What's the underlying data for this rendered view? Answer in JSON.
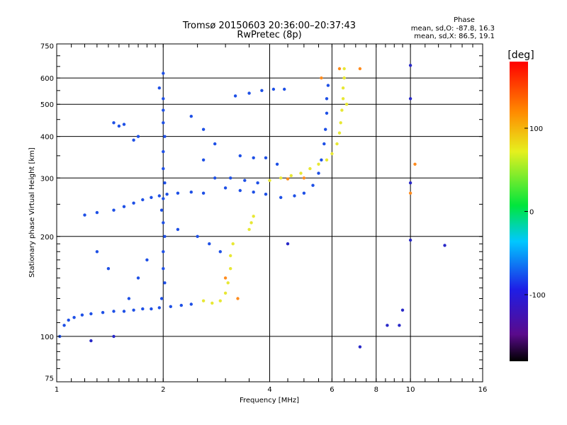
{
  "chart_data": {
    "type": "scatter",
    "title": "Tromsø 20150603 20:36:00–20:37:43",
    "subtitle": "RwPretec (8p)",
    "xlabel": "Frequency [MHz]",
    "ylabel": "Stationary phase Virtual Height [km]",
    "x_scale": "log",
    "y_scale": "log",
    "xlim": [
      1,
      16
    ],
    "ylim": [
      73,
      760
    ],
    "x_ticks": [
      "1",
      "2",
      "4",
      "6",
      "8",
      "10",
      "16"
    ],
    "y_ticks": [
      "75",
      "100",
      "200",
      "300",
      "400",
      "500",
      "600",
      "750"
    ],
    "grid": true,
    "phase_box": {
      "title": "Phase",
      "line1": "mean, sd,O: -87.8, 16.3",
      "line2": "mean, sd,X:  86.5, 19.1"
    },
    "colorbar": {
      "label": "[deg]",
      "range": [
        -180,
        180
      ],
      "ticks": [
        "100",
        "0",
        "-100"
      ],
      "colormap": "rainbow (black-purple-blue-cyan-green-yellow-red)"
    },
    "series": [
      {
        "mode": "O",
        "phase_deg": -90,
        "color": "#1e50e6",
        "points": [
          [
            1.02,
            100
          ],
          [
            1.05,
            108
          ],
          [
            1.08,
            112
          ],
          [
            1.12,
            114
          ],
          [
            1.18,
            116
          ],
          [
            1.25,
            117
          ],
          [
            1.35,
            118
          ],
          [
            1.45,
            119
          ],
          [
            1.55,
            119
          ],
          [
            1.65,
            120
          ],
          [
            1.75,
            121
          ],
          [
            1.85,
            121
          ],
          [
            1.95,
            122
          ],
          [
            2.1,
            123
          ],
          [
            2.25,
            124
          ],
          [
            2.4,
            125
          ],
          [
            1.2,
            232
          ],
          [
            1.3,
            236
          ],
          [
            1.45,
            240
          ],
          [
            1.55,
            246
          ],
          [
            1.65,
            252
          ],
          [
            1.75,
            258
          ],
          [
            1.85,
            262
          ],
          [
            1.95,
            265
          ],
          [
            2.05,
            268
          ],
          [
            2.2,
            270
          ],
          [
            2.4,
            272
          ],
          [
            2.6,
            270
          ],
          [
            1.95,
            560
          ],
          [
            2.0,
            520
          ],
          [
            2.0,
            480
          ],
          [
            2.0,
            440
          ],
          [
            2.02,
            400
          ],
          [
            2.0,
            360
          ],
          [
            2.0,
            320
          ],
          [
            2.02,
            290
          ],
          [
            2.0,
            260
          ],
          [
            1.98,
            240
          ],
          [
            2.0,
            220
          ],
          [
            2.02,
            200
          ],
          [
            2.0,
            180
          ],
          [
            2.0,
            160
          ],
          [
            2.02,
            145
          ],
          [
            1.98,
            130
          ],
          [
            2.0,
            620
          ],
          [
            2.4,
            460
          ],
          [
            2.6,
            420
          ],
          [
            2.8,
            380
          ],
          [
            2.6,
            340
          ],
          [
            2.8,
            300
          ],
          [
            3.0,
            280
          ],
          [
            3.3,
            275
          ],
          [
            3.6,
            272
          ],
          [
            3.9,
            268
          ],
          [
            4.3,
            262
          ],
          [
            4.7,
            265
          ],
          [
            5.0,
            270
          ],
          [
            5.3,
            285
          ],
          [
            5.5,
            310
          ],
          [
            5.6,
            340
          ],
          [
            5.7,
            380
          ],
          [
            5.75,
            420
          ],
          [
            5.8,
            470
          ],
          [
            5.8,
            520
          ],
          [
            5.85,
            570
          ],
          [
            3.2,
            530
          ],
          [
            3.5,
            540
          ],
          [
            3.8,
            550
          ],
          [
            4.1,
            555
          ],
          [
            4.4,
            555
          ],
          [
            3.3,
            350
          ],
          [
            3.6,
            345
          ],
          [
            3.9,
            345
          ],
          [
            4.2,
            330
          ],
          [
            3.1,
            300
          ],
          [
            3.4,
            295
          ],
          [
            3.7,
            290
          ],
          [
            1.5,
            430
          ],
          [
            1.55,
            435
          ],
          [
            1.45,
            440
          ],
          [
            1.7,
            400
          ],
          [
            1.65,
            390
          ],
          [
            2.2,
            210
          ],
          [
            2.5,
            200
          ],
          [
            2.7,
            190
          ],
          [
            2.9,
            180
          ],
          [
            1.6,
            130
          ],
          [
            1.7,
            150
          ],
          [
            1.8,
            170
          ],
          [
            1.4,
            160
          ],
          [
            1.3,
            180
          ]
        ]
      },
      {
        "mode": "X",
        "phase_deg": 87,
        "color": "#e8e834",
        "points": [
          [
            2.6,
            128
          ],
          [
            2.75,
            126
          ],
          [
            2.9,
            128
          ],
          [
            3.0,
            135
          ],
          [
            3.05,
            145
          ],
          [
            3.1,
            160
          ],
          [
            3.1,
            175
          ],
          [
            3.15,
            190
          ],
          [
            4.0,
            295
          ],
          [
            4.3,
            300
          ],
          [
            4.6,
            305
          ],
          [
            4.9,
            310
          ],
          [
            5.2,
            320
          ],
          [
            5.5,
            330
          ],
          [
            5.8,
            340
          ],
          [
            6.0,
            355
          ],
          [
            6.2,
            380
          ],
          [
            6.3,
            410
          ],
          [
            6.35,
            440
          ],
          [
            6.4,
            480
          ],
          [
            6.45,
            520
          ],
          [
            6.45,
            560
          ],
          [
            6.5,
            600
          ],
          [
            6.5,
            640
          ],
          [
            3.5,
            210
          ],
          [
            3.55,
            220
          ],
          [
            3.6,
            230
          ],
          [
            6.6,
            500
          ]
        ]
      },
      {
        "mode": "X",
        "phase_deg": 140,
        "color": "#ff8c1e",
        "points": [
          [
            3.25,
            130
          ],
          [
            3.0,
            150
          ],
          [
            5.6,
            600
          ],
          [
            6.3,
            640
          ],
          [
            7.2,
            640
          ],
          [
            10.0,
            270
          ],
          [
            10.3,
            330
          ],
          [
            5.0,
            300
          ],
          [
            4.5,
            298
          ]
        ]
      },
      {
        "mode": "noise",
        "phase_deg": -95,
        "color": "#2828c8",
        "points": [
          [
            10.0,
            655
          ],
          [
            10.0,
            520
          ],
          [
            10.0,
            290
          ],
          [
            10.0,
            195
          ],
          [
            12.5,
            188
          ],
          [
            7.2,
            93
          ],
          [
            9.3,
            108
          ],
          [
            9.5,
            120
          ],
          [
            8.6,
            108
          ],
          [
            1.25,
            97
          ],
          [
            1.45,
            100
          ],
          [
            4.5,
            190
          ]
        ]
      }
    ]
  }
}
